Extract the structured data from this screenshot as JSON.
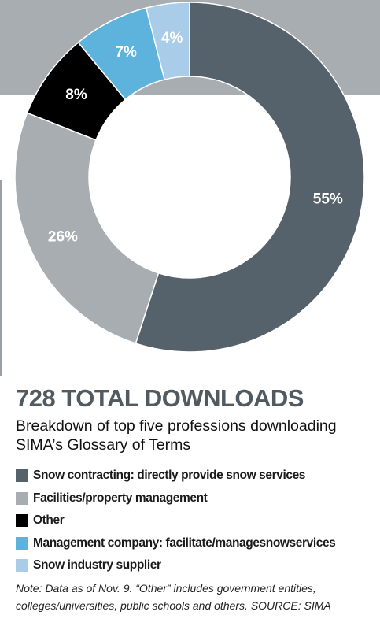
{
  "chart_data": {
    "type": "pie",
    "title": "728 TOTAL DOWNLOADS",
    "subtitle": "Breakdown of top five professions downloading SIMA’s Glossary of Terms",
    "categories": [
      "Snow contracting: directly provide snow services",
      "Facilities/property management",
      "Other",
      "Management company: facilitate/managesnowservices",
      "Snow industry supplier"
    ],
    "values": [
      55,
      26,
      8,
      7,
      4
    ],
    "value_labels": [
      "55%",
      "26%",
      "8%",
      "7%",
      "4%"
    ],
    "colors": [
      "#56626b",
      "#a7adb1",
      "#000000",
      "#5eb3dd",
      "#a9cde9"
    ],
    "donut": true,
    "legend_position": "bottom-left",
    "note": "Note: Data as of Nov. 9. “Other” includes government entities, colleges/universities, public schools and others. SOURCE: SIMA"
  },
  "colors": {
    "header_band": "#a7adb1",
    "title": "#525a61"
  }
}
